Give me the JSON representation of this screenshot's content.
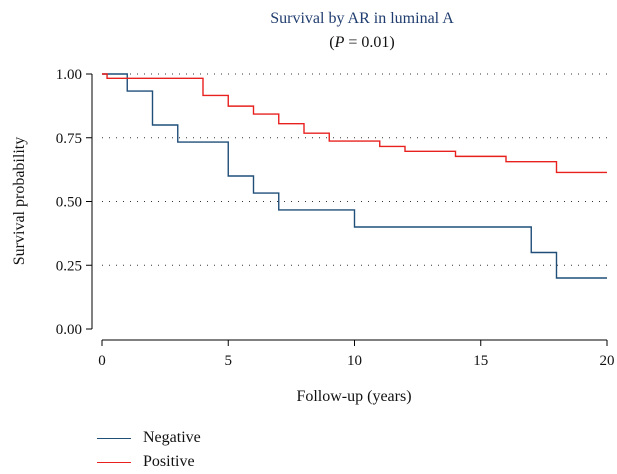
{
  "chart_data": {
    "type": "line",
    "title": "Survival by AR in luminal A",
    "subtitle_prefix": "(",
    "subtitle_italic": "P",
    "subtitle_suffix": " = 0.01)",
    "xlabel": "Follow-up (years)",
    "ylabel": "Survival probability",
    "xlim": [
      0,
      20
    ],
    "ylim": [
      0,
      1
    ],
    "x_ticks": [
      0,
      5,
      10,
      15,
      20
    ],
    "y_ticks": [
      0.0,
      0.25,
      0.5,
      0.75,
      1.0
    ],
    "y_tick_labels": [
      "0.00",
      "0.25",
      "0.50",
      "0.75",
      "1.00"
    ],
    "grid": "dotted horizontal at 0.25, 0.50, 0.75, 1.00",
    "legend_position": "bottom-left",
    "colors": {
      "title": "#1f3c6e",
      "Negative": "#1f4e79",
      "Positive": "#e8201e"
    },
    "series": [
      {
        "name": "Negative",
        "step": true,
        "x": [
          0,
          1,
          2,
          3,
          5,
          6,
          7,
          10,
          17,
          18,
          20
        ],
        "y": [
          1.0,
          0.933,
          0.8,
          0.733,
          0.6,
          0.533,
          0.467,
          0.4,
          0.3,
          0.2,
          0.2
        ]
      },
      {
        "name": "Positive",
        "step": true,
        "x": [
          0,
          0.2,
          4,
          5,
          6,
          7,
          8,
          9,
          11,
          12,
          14,
          16,
          18,
          20
        ],
        "y": [
          1.0,
          0.983,
          0.916,
          0.874,
          0.843,
          0.805,
          0.768,
          0.737,
          0.716,
          0.697,
          0.677,
          0.656,
          0.614,
          0.614
        ]
      }
    ]
  }
}
